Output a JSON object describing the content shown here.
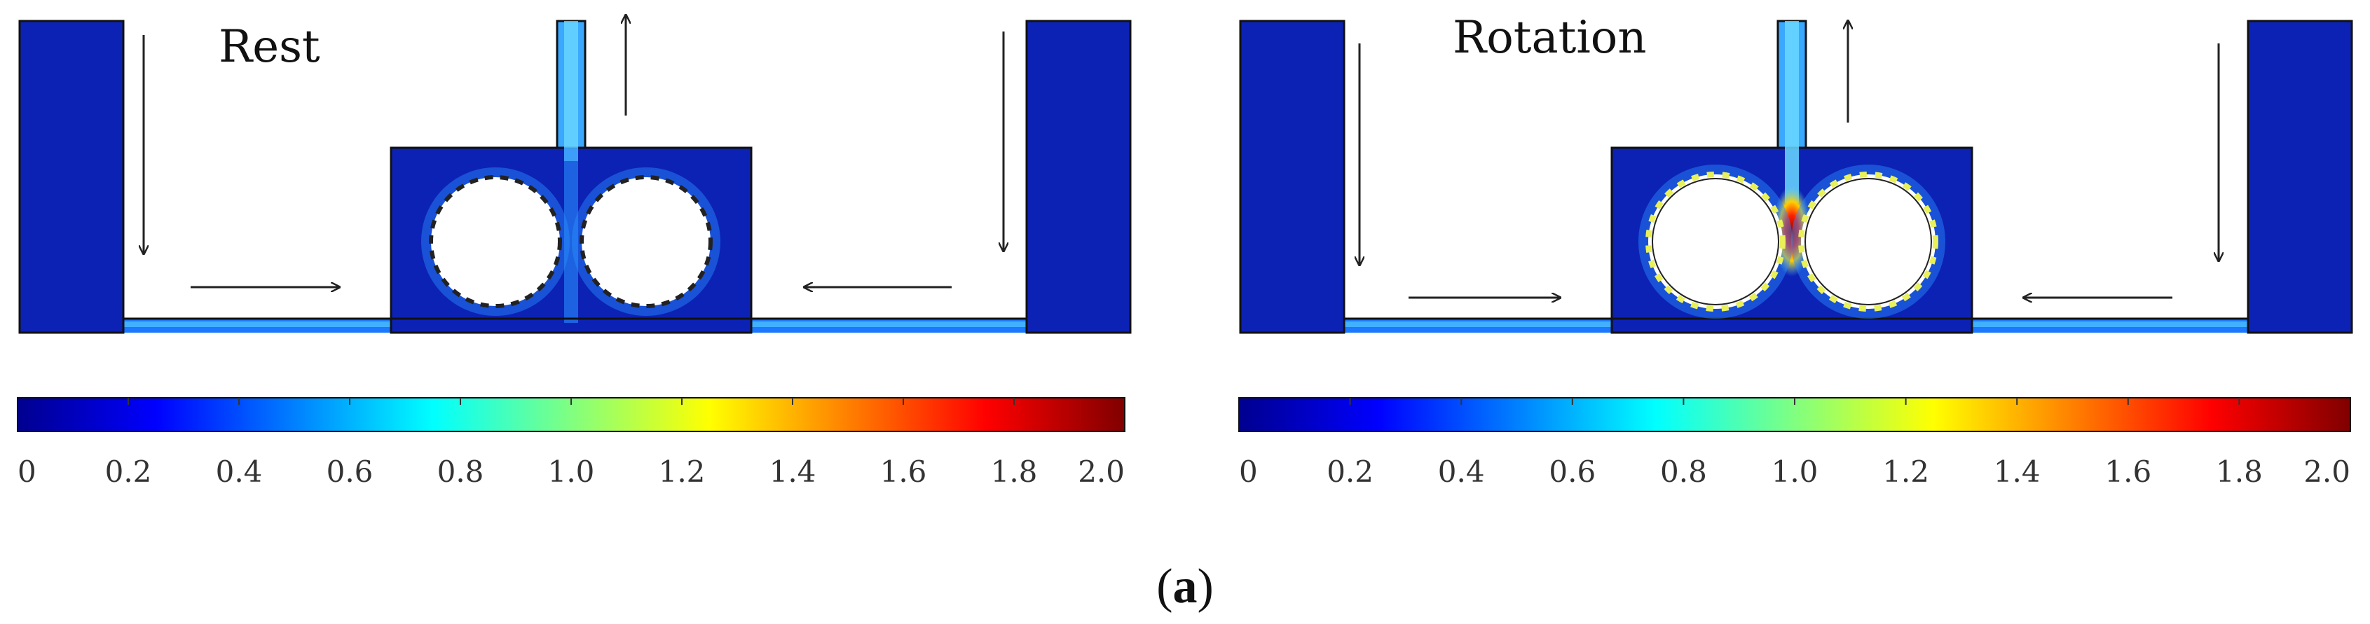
{
  "panels": [
    {
      "title": "Rest",
      "state": "rest"
    },
    {
      "title": "Rotation",
      "state": "rotation"
    }
  ],
  "colorbar": {
    "ticks": [
      "0",
      "0.2",
      "0.4",
      "0.6",
      "0.8",
      "1.0",
      "1.2",
      "1.4",
      "1.6",
      "1.8",
      "2.0"
    ],
    "min": 0,
    "max": 2.0,
    "colormap": [
      "#00008f",
      "#0000ff",
      "#0080ff",
      "#00ffff",
      "#80ff80",
      "#ffff00",
      "#ff8000",
      "#ff0000",
      "#800000"
    ]
  },
  "caption": {
    "open": "(",
    "letter": "a",
    "close": ")"
  },
  "colors": {
    "background_field": "#0a1fb0",
    "channel_field": "#1a6cff",
    "jet": "#5fd0ff",
    "hotspot": "#ff2000",
    "arrow": "#222222"
  }
}
